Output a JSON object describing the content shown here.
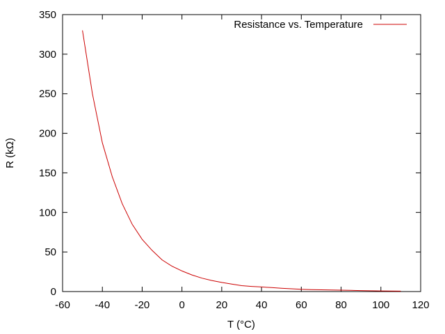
{
  "chart_data": {
    "type": "line",
    "xlabel": "T (°C)",
    "ylabel": "R (kΩ)",
    "xlim": [
      -60,
      120
    ],
    "ylim": [
      0,
      350
    ],
    "x_ticks": [
      -60,
      -40,
      -20,
      0,
      20,
      40,
      60,
      80,
      100,
      120
    ],
    "y_ticks": [
      0,
      50,
      100,
      150,
      200,
      250,
      300,
      350
    ],
    "grid": false,
    "legend_position": "top-right",
    "series": [
      {
        "name": "Resistance vs. Temperature",
        "color": "#cc0000",
        "x": [
          -50,
          -45,
          -40,
          -35,
          -30,
          -25,
          -20,
          -15,
          -10,
          -5,
          0,
          5,
          10,
          15,
          20,
          25,
          30,
          35,
          40,
          45,
          50,
          55,
          60,
          65,
          70,
          75,
          80,
          85,
          90,
          95,
          100,
          105,
          110
        ],
        "y": [
          330,
          250,
          188,
          145,
          111,
          85,
          66,
          52,
          40,
          32,
          26,
          21,
          17,
          14,
          11.5,
          9.5,
          7.5,
          6.5,
          5.8,
          5,
          4.2,
          3.5,
          2.8,
          2.5,
          2.2,
          2,
          1.8,
          1.5,
          1.2,
          1,
          0.8,
          0.6,
          0.5
        ]
      }
    ]
  }
}
